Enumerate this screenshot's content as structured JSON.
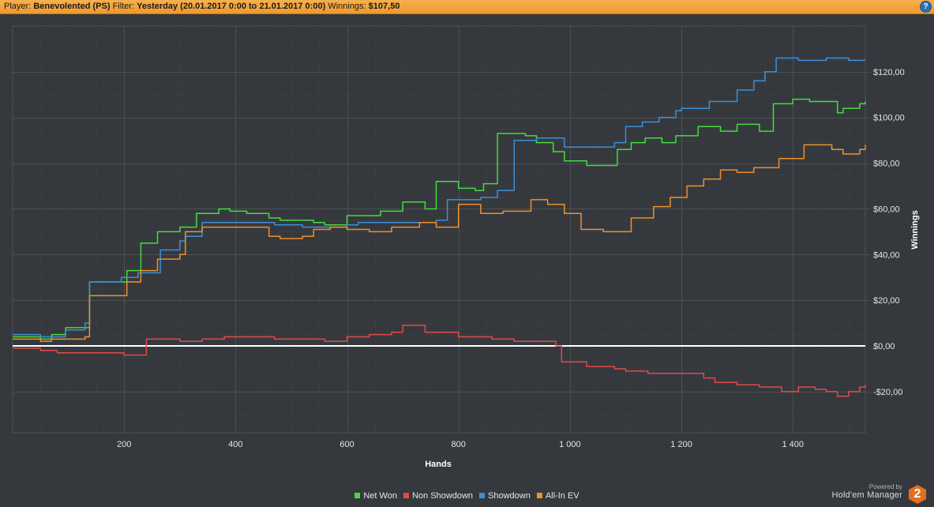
{
  "header": {
    "player_label": "Player:",
    "player_value": "Benevolented (PS)",
    "filter_label": "Filter:",
    "filter_value": "Yesterday (20.01.2017 0:00 to 21.01.2017 0:00)",
    "winnings_label": "Winnings:",
    "winnings_value": "$107,50",
    "help_icon": "help-icon",
    "help_symbol": "?"
  },
  "footer": {
    "powered_by": "Powered by",
    "brand": "Hold'em Manager",
    "brand_badge": "2"
  },
  "colors": {
    "header_bg": "#f4a640",
    "plot_bg": "#35393e",
    "grid": "#4b5055",
    "zero_line": "#ffffff",
    "net_won": "#43dd3a",
    "non_showdown": "#e04a4a",
    "showdown": "#3d8fd6",
    "all_in_ev": "#f0902c"
  },
  "chart_data": {
    "type": "line",
    "xlabel": "Hands",
    "ylabel": "Winnings",
    "xlim": [
      0,
      1530
    ],
    "ylim": [
      -38,
      140
    ],
    "x_ticks": [
      200,
      400,
      600,
      800,
      1000,
      1200,
      1400
    ],
    "x_tick_labels": [
      "200",
      "400",
      "600",
      "800",
      "1 000",
      "1 200",
      "1 400"
    ],
    "y_ticks": [
      -20,
      0,
      20,
      40,
      60,
      80,
      100,
      120
    ],
    "y_tick_labels": [
      "-$20,00",
      "$0,00",
      "$20,00",
      "$40,00",
      "$60,00",
      "$80,00",
      "$100,00",
      "$120,00"
    ],
    "grid": true,
    "legend_position": "bottom-center",
    "series": [
      {
        "name": "Net Won",
        "color": "#43dd3a",
        "x": [
          0,
          50,
          70,
          95,
          130,
          138,
          175,
          205,
          230,
          260,
          300,
          330,
          370,
          390,
          420,
          460,
          480,
          500,
          540,
          560,
          600,
          630,
          660,
          700,
          740,
          760,
          800,
          830,
          845,
          870,
          920,
          940,
          970,
          990,
          1030,
          1070,
          1085,
          1110,
          1135,
          1165,
          1190,
          1230,
          1270,
          1300,
          1340,
          1365,
          1400,
          1430,
          1480,
          1490,
          1520,
          1530
        ],
        "y": [
          4,
          3,
          5,
          8,
          8,
          28,
          28,
          33,
          45,
          50,
          52,
          58,
          60,
          59,
          58,
          56,
          55,
          55,
          54,
          53,
          57,
          57,
          59,
          63,
          60,
          72,
          69,
          68,
          71,
          93,
          92,
          89,
          85,
          81,
          79,
          79,
          86,
          89,
          91,
          89,
          92,
          96,
          94,
          97,
          94,
          106,
          108,
          107,
          102,
          104,
          106,
          107
        ]
      },
      {
        "name": "Non Showdown",
        "color": "#e04a4a",
        "x": [
          0,
          50,
          80,
          130,
          200,
          240,
          300,
          340,
          380,
          420,
          470,
          500,
          560,
          590,
          600,
          640,
          680,
          700,
          740,
          800,
          860,
          900,
          940,
          975,
          985,
          1030,
          1080,
          1100,
          1140,
          1200,
          1240,
          1260,
          1300,
          1340,
          1380,
          1410,
          1440,
          1460,
          1480,
          1500,
          1520,
          1530
        ],
        "y": [
          -1,
          -2,
          -3,
          -3,
          -4,
          3,
          2,
          3,
          4,
          4,
          3,
          3,
          2,
          2,
          4,
          5,
          6,
          9,
          6,
          4,
          3,
          2,
          2,
          0,
          -7,
          -9,
          -10,
          -11,
          -12,
          -12,
          -14,
          -16,
          -17,
          -18,
          -20,
          -18,
          -19,
          -20,
          -22,
          -20,
          -18,
          -17
        ]
      },
      {
        "name": "Showdown",
        "color": "#3d8fd6",
        "x": [
          0,
          50,
          95,
          130,
          138,
          195,
          205,
          225,
          265,
          300,
          310,
          340,
          400,
          470,
          520,
          540,
          600,
          620,
          690,
          760,
          780,
          840,
          870,
          900,
          920,
          940,
          990,
          1020,
          1080,
          1100,
          1130,
          1160,
          1190,
          1200,
          1250,
          1300,
          1330,
          1350,
          1370,
          1410,
          1460,
          1500,
          1530
        ],
        "y": [
          5,
          4,
          7,
          10,
          28,
          30,
          30,
          32,
          42,
          46,
          48,
          54,
          54,
          53,
          52,
          52,
          53,
          54,
          54,
          55,
          64,
          65,
          68,
          90,
          90,
          91,
          87,
          87,
          89,
          96,
          98,
          100,
          103,
          104,
          107,
          112,
          116,
          120,
          126,
          125,
          126,
          125,
          125
        ]
      },
      {
        "name": "All-In EV",
        "color": "#f0902c",
        "x": [
          0,
          50,
          70,
          95,
          130,
          138,
          175,
          205,
          230,
          260,
          300,
          310,
          340,
          400,
          460,
          480,
          520,
          540,
          570,
          600,
          640,
          680,
          730,
          760,
          800,
          840,
          880,
          930,
          960,
          990,
          1020,
          1060,
          1080,
          1110,
          1150,
          1180,
          1210,
          1240,
          1270,
          1300,
          1330,
          1350,
          1375,
          1420,
          1470,
          1490,
          1520,
          1530
        ],
        "y": [
          3,
          2,
          3,
          3,
          4,
          22,
          22,
          28,
          33,
          38,
          40,
          50,
          52,
          52,
          48,
          47,
          48,
          51,
          52,
          51,
          50,
          52,
          54,
          52,
          62,
          58,
          59,
          64,
          62,
          58,
          51,
          50,
          50,
          56,
          61,
          65,
          70,
          73,
          77,
          76,
          78,
          78,
          82,
          88,
          86,
          84,
          86,
          88
        ]
      }
    ]
  }
}
